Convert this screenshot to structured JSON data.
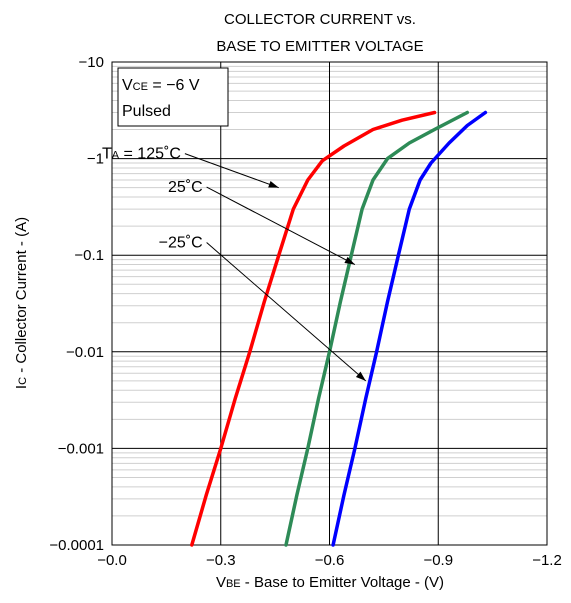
{
  "chart_data": {
    "type": "line",
    "title": [
      "COLLECTOR CURRENT vs.",
      "BASE TO EMITTER VOLTAGE"
    ],
    "xlabel": {
      "sym": "V",
      "sub": "BE",
      "rest": " - Base to Emitter Voltage - (V)"
    },
    "ylabel": {
      "sym": "I",
      "sub": "C",
      "rest": " - Collector Current - (A)"
    },
    "x_scale": "linear",
    "y_scale": "log",
    "xlim": [
      0,
      -1.2
    ],
    "ylim": [
      -0.0001,
      -10
    ],
    "x_ticks": [
      {
        "value": 0,
        "label": "−0.0"
      },
      {
        "value": -0.3,
        "label": "−0.3"
      },
      {
        "value": -0.6,
        "label": "−0.6"
      },
      {
        "value": -0.9,
        "label": "−0.9"
      },
      {
        "value": -1.2,
        "label": "−1.2"
      }
    ],
    "y_ticks": [
      {
        "value": -10,
        "label": "−10"
      },
      {
        "value": -1,
        "label": "−1"
      },
      {
        "value": -0.1,
        "label": "−0.1"
      },
      {
        "value": -0.01,
        "label": "−0.01"
      },
      {
        "value": -0.001,
        "label": "−0.001"
      },
      {
        "value": -0.0001,
        "label": "−0.0001"
      }
    ],
    "grid": true,
    "conditions": {
      "line1": {
        "sym": "V",
        "sub": "CE",
        "rest": " = −6 V"
      },
      "line2": "Pulsed"
    },
    "series": [
      {
        "name": "125˚C",
        "label": {
          "sym": "T",
          "sub": "A",
          "rest": " = 125˚C"
        },
        "color": "#ff0000",
        "label_anchor": [
          -0.19,
          -1
        ],
        "arrow_to": [
          -0.46,
          -0.5
        ],
        "points": [
          [
            -0.22,
            -0.0001
          ],
          [
            -0.26,
            -0.00033
          ],
          [
            -0.3,
            -0.001
          ],
          [
            -0.34,
            -0.0033
          ],
          [
            -0.38,
            -0.01
          ],
          [
            -0.42,
            -0.033
          ],
          [
            -0.46,
            -0.1
          ],
          [
            -0.5,
            -0.3
          ],
          [
            -0.54,
            -0.6
          ],
          [
            -0.58,
            -0.95
          ],
          [
            -0.64,
            -1.35
          ],
          [
            -0.72,
            -2
          ],
          [
            -0.8,
            -2.5
          ],
          [
            -0.89,
            -3
          ]
        ]
      },
      {
        "name": "25˚C",
        "label": {
          "text": "25˚C"
        },
        "color": "#2e8b57",
        "label_anchor": [
          -0.25,
          -0.45
        ],
        "arrow_to": [
          -0.67,
          -0.08
        ],
        "points": [
          [
            -0.48,
            -0.0001
          ],
          [
            -0.51,
            -0.00033
          ],
          [
            -0.54,
            -0.001
          ],
          [
            -0.57,
            -0.0033
          ],
          [
            -0.6,
            -0.01
          ],
          [
            -0.63,
            -0.033
          ],
          [
            -0.66,
            -0.1
          ],
          [
            -0.69,
            -0.3
          ],
          [
            -0.72,
            -0.6
          ],
          [
            -0.76,
            -1
          ],
          [
            -0.82,
            -1.45
          ],
          [
            -0.9,
            -2.1
          ],
          [
            -0.98,
            -3
          ]
        ]
      },
      {
        "name": "−25˚C",
        "label": {
          "text": "−25˚C"
        },
        "color": "#0000ff",
        "label_anchor": [
          -0.25,
          -0.12
        ],
        "arrow_to": [
          -0.7,
          -0.005
        ],
        "points": [
          [
            -0.61,
            -0.0001
          ],
          [
            -0.64,
            -0.00033
          ],
          [
            -0.67,
            -0.001
          ],
          [
            -0.7,
            -0.0033
          ],
          [
            -0.73,
            -0.01
          ],
          [
            -0.76,
            -0.033
          ],
          [
            -0.79,
            -0.1
          ],
          [
            -0.82,
            -0.3
          ],
          [
            -0.85,
            -0.6
          ],
          [
            -0.88,
            -0.9
          ],
          [
            -0.93,
            -1.45
          ],
          [
            -0.98,
            -2.2
          ],
          [
            -1.03,
            -3
          ]
        ]
      }
    ]
  }
}
